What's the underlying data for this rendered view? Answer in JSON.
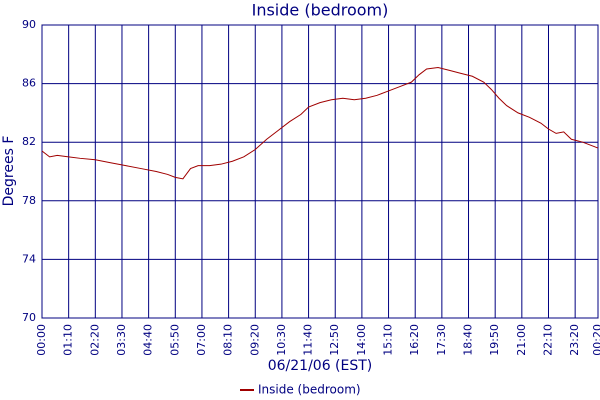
{
  "chart_data": {
    "type": "line",
    "title": "Inside (bedroom)",
    "x_label": "06/21/06 (EST)",
    "y_label": "Degrees F",
    "x": [
      0,
      20,
      40,
      70,
      100,
      140,
      180,
      220,
      260,
      300,
      330,
      350,
      370,
      390,
      410,
      440,
      470,
      500,
      530,
      560,
      590,
      620,
      650,
      680,
      700,
      730,
      760,
      790,
      820,
      850,
      880,
      910,
      940,
      970,
      990,
      1010,
      1040,
      1070,
      1100,
      1130,
      1160,
      1180,
      1200,
      1220,
      1250,
      1280,
      1310,
      1330,
      1350,
      1370,
      1390,
      1420,
      1450,
      1460
    ],
    "series": [
      {
        "name": "Inside (bedroom)",
        "color": "#a00000",
        "values": [
          81.4,
          81.0,
          81.1,
          81.0,
          80.9,
          80.8,
          80.6,
          80.4,
          80.2,
          80.0,
          79.8,
          79.6,
          79.5,
          80.2,
          80.4,
          80.4,
          80.5,
          80.7,
          81.0,
          81.5,
          82.2,
          82.8,
          83.4,
          83.9,
          84.4,
          84.7,
          84.9,
          85.0,
          84.9,
          85.0,
          85.2,
          85.5,
          85.8,
          86.1,
          86.6,
          87.0,
          87.1,
          86.9,
          86.7,
          86.5,
          86.1,
          85.6,
          85.0,
          84.5,
          84.0,
          83.7,
          83.3,
          82.9,
          82.6,
          82.7,
          82.2,
          82.0,
          81.7,
          81.6
        ]
      }
    ],
    "xlim": [
      0,
      1460
    ],
    "ylim": [
      70,
      90
    ],
    "xticks": [
      {
        "value": 0,
        "label": "00:00"
      },
      {
        "value": 70,
        "label": "01:10"
      },
      {
        "value": 140,
        "label": "02:20"
      },
      {
        "value": 210,
        "label": "03:30"
      },
      {
        "value": 280,
        "label": "04:40"
      },
      {
        "value": 350,
        "label": "05:50"
      },
      {
        "value": 420,
        "label": "07:00"
      },
      {
        "value": 490,
        "label": "08:10"
      },
      {
        "value": 560,
        "label": "09:20"
      },
      {
        "value": 630,
        "label": "10:30"
      },
      {
        "value": 700,
        "label": "11:40"
      },
      {
        "value": 770,
        "label": "12:50"
      },
      {
        "value": 840,
        "label": "14:00"
      },
      {
        "value": 910,
        "label": "15:10"
      },
      {
        "value": 980,
        "label": "16:20"
      },
      {
        "value": 1050,
        "label": "17:30"
      },
      {
        "value": 1120,
        "label": "18:40"
      },
      {
        "value": 1190,
        "label": "19:50"
      },
      {
        "value": 1260,
        "label": "21:00"
      },
      {
        "value": 1330,
        "label": "22:10"
      },
      {
        "value": 1400,
        "label": "23:20"
      },
      {
        "value": 1460,
        "label": "00:20"
      }
    ],
    "yticks": [
      70,
      74,
      78,
      82,
      86,
      90
    ],
    "grid": true,
    "grid_color": "#000080",
    "legend": "bottom"
  }
}
